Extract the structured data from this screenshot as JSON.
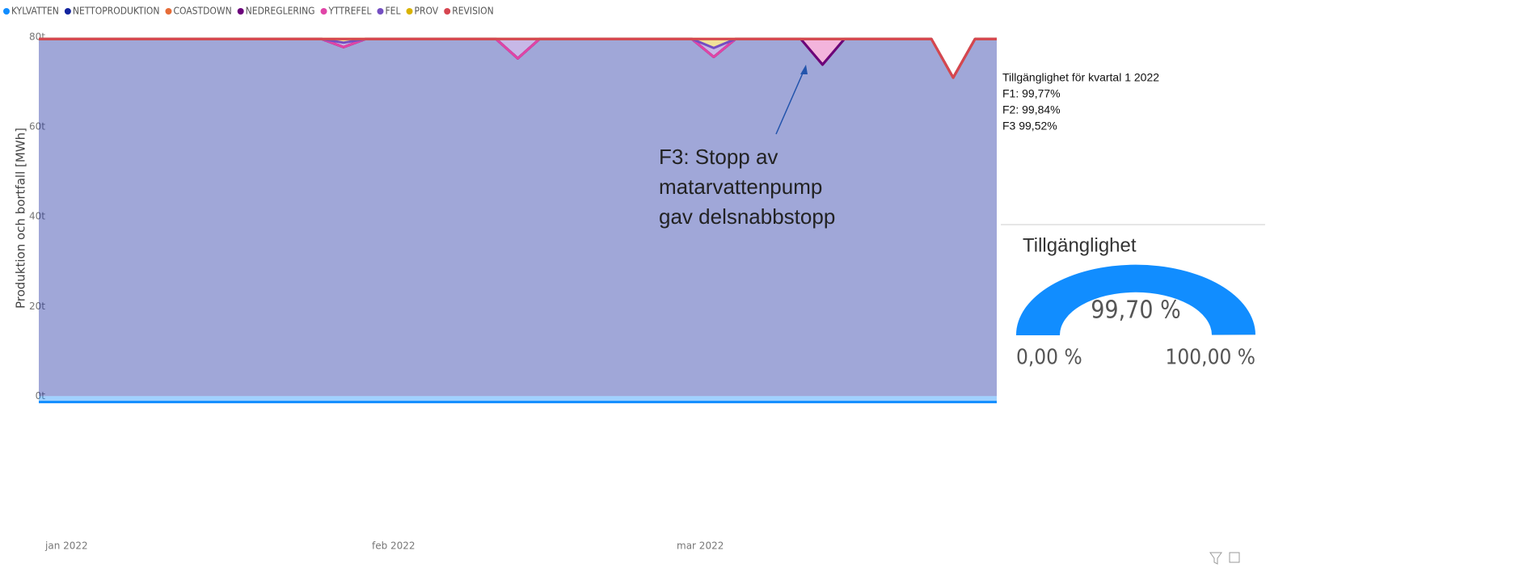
{
  "chart_data": {
    "type": "stacked_area",
    "y_label": "Produktion och bortfall [MWh]",
    "categories": [
      "jan 2022",
      null,
      null,
      null,
      null,
      null,
      null,
      null,
      null,
      null,
      null,
      null,
      null,
      null,
      null,
      "feb 2022",
      null,
      null,
      null,
      null,
      null,
      null,
      null,
      null,
      null,
      null,
      null,
      null,
      null,
      "mar 2022",
      null,
      null,
      null,
      null,
      null,
      null,
      null,
      null,
      null,
      null,
      null,
      null,
      null,
      null,
      null
    ],
    "series": [
      {
        "name": "KYLVATTEN",
        "color": "#118dff",
        "values": [
          -1.3,
          -1.3,
          -1.3,
          -1.3,
          -1.3,
          -1.3,
          -1.3,
          -1.3,
          -1.3,
          -1.3,
          -1.3,
          -1.3,
          -1.3,
          -1.3,
          -1.3,
          -1.3,
          -1.3,
          -1.3,
          -1.3,
          -1.3,
          -1.3,
          -1.3,
          -1.3,
          -1.3,
          -1.3,
          -1.3,
          -1.3,
          -1.3,
          -1.3,
          -1.3,
          -1.3,
          -1.3,
          -1.3,
          -1.3,
          -1.3,
          -1.3,
          -1.3,
          -1.3,
          -1.3,
          -1.3,
          -1.3,
          -1.3,
          -1.3,
          -1.3,
          -1.3
        ]
      },
      {
        "name": "NETTOPRODUKTION",
        "color": "#12239e",
        "values": [
          79.6,
          79.6,
          79.6,
          79.6,
          79.6,
          79.6,
          79.6,
          79.6,
          79.6,
          79.6,
          79.6,
          79.6,
          79.6,
          79.6,
          77.8,
          79.6,
          79.6,
          79.6,
          79.6,
          79.6,
          79.6,
          79.6,
          75.3,
          79.6,
          79.6,
          79.6,
          79.6,
          79.6,
          79.6,
          79.6,
          79.6,
          75.6,
          79.6,
          79.6,
          79.6,
          79.6,
          73.9,
          79.6,
          79.6,
          79.6,
          79.6,
          79.6,
          71.0,
          79.6,
          79.6
        ]
      },
      {
        "name": "COASTDOWN",
        "color": "#e66c37",
        "values": [
          0,
          0,
          0,
          0,
          0,
          0,
          0,
          0,
          0,
          0,
          0,
          0,
          0,
          0,
          0,
          0,
          0,
          0,
          0,
          0,
          0,
          0,
          0,
          0,
          0,
          0,
          0,
          0,
          0,
          0,
          0,
          0,
          0,
          0,
          0,
          0,
          0,
          0,
          0,
          0,
          0,
          0,
          0,
          0,
          0
        ]
      },
      {
        "name": "NEDREGLERING",
        "color": "#6b007b",
        "values": [
          0,
          0,
          0,
          0,
          0,
          0,
          0,
          0,
          0,
          0,
          0,
          0,
          0,
          0,
          0,
          0,
          0,
          0,
          0,
          0,
          0,
          0,
          0,
          0,
          0,
          0,
          0,
          0,
          0,
          0,
          0,
          0,
          0,
          0,
          0,
          0,
          0,
          0,
          0,
          0,
          0,
          0,
          0,
          0,
          0
        ]
      },
      {
        "name": "YTTREFEL",
        "color": "#e044a7",
        "values": [
          0,
          0,
          0,
          0,
          0,
          0,
          0,
          0,
          0,
          0,
          0,
          0,
          0,
          0,
          0,
          0,
          0,
          0,
          0,
          0,
          0,
          0,
          0,
          0,
          0,
          0,
          0,
          0,
          0,
          0,
          0,
          0,
          0,
          0,
          0,
          0,
          5.7,
          0,
          0,
          0,
          0,
          0,
          0,
          0,
          0
        ]
      },
      {
        "name": "FEL",
        "color": "#744ec2",
        "values": [
          0,
          0,
          0,
          0,
          0,
          0,
          0,
          0,
          0,
          0,
          0,
          0,
          0,
          0,
          1.0,
          0,
          0,
          0,
          0,
          0,
          0,
          0,
          4.3,
          0,
          0,
          0,
          0,
          0,
          0,
          0,
          0,
          2.0,
          0,
          0,
          0,
          0,
          0,
          0,
          0,
          0,
          0,
          0,
          0,
          0,
          0
        ]
      },
      {
        "name": "PROV",
        "color": "#d9b300",
        "values": [
          0,
          0,
          0,
          0,
          0,
          0,
          0,
          0,
          0,
          0,
          0,
          0,
          0,
          0,
          0.8,
          0,
          0,
          0,
          0,
          0,
          0,
          0,
          0,
          0,
          0,
          0,
          0,
          0,
          0,
          0,
          0,
          2.0,
          0,
          0,
          0,
          0,
          0,
          0,
          0,
          0,
          0,
          0,
          0,
          0,
          0
        ]
      },
      {
        "name": "REVISION",
        "color": "#d64550",
        "values": [
          0,
          0,
          0,
          0,
          0,
          0,
          0,
          0,
          0,
          0,
          0,
          0,
          0,
          0,
          0,
          0,
          0,
          0,
          0,
          0,
          0,
          0,
          0,
          0,
          0,
          0,
          0,
          0,
          0,
          0,
          0,
          0,
          0,
          0,
          0,
          0,
          0,
          0,
          0,
          0,
          0,
          0,
          0,
          0,
          0
        ]
      }
    ],
    "ylim": [
      -3,
      82
    ],
    "yticks": [
      {
        "value": 0,
        "label": "0t"
      },
      {
        "value": 20,
        "label": "20t"
      },
      {
        "value": 40,
        "label": "40t"
      },
      {
        "value": 60,
        "label": "60t"
      },
      {
        "value": 80,
        "label": "80t"
      }
    ],
    "grid": false,
    "legend": "top-left",
    "annotation": [
      "F3: Stopp av",
      "matarvattenpump",
      "gav delsnabbstopp"
    ]
  },
  "info": [
    "Tillgänglighet för kvartal 1 2022",
    "F1: 99,77%",
    "F2: 99,84%",
    "F3 99,52%"
  ],
  "gauge": {
    "title": "Tillgänglighet",
    "value": 99.7,
    "value_label": "99,70 %",
    "min": {
      "value": 0,
      "label": "0,00 %"
    },
    "max": {
      "value": 100,
      "label": "100,00 %"
    },
    "color": "#118dff"
  }
}
